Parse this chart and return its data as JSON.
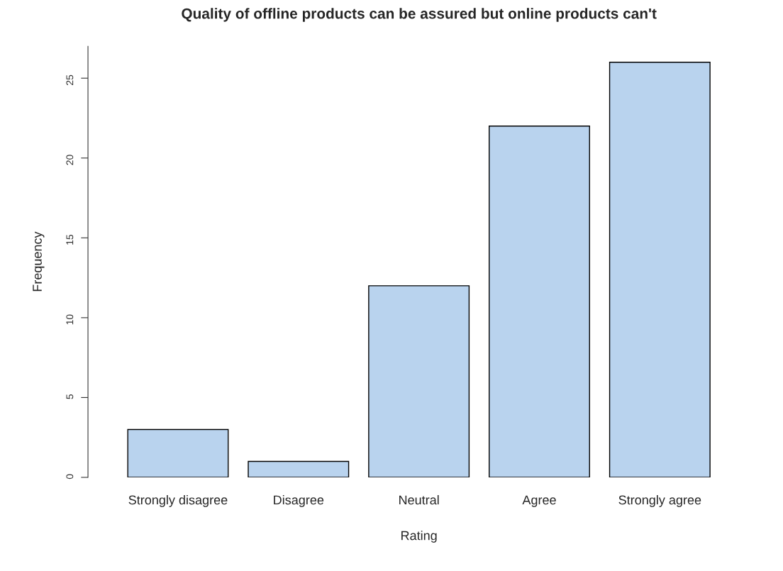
{
  "chart_data": {
    "type": "bar",
    "title": "Quality of offline products can be assured but online products can't",
    "xlabel": "Rating",
    "ylabel": "Frequency",
    "categories": [
      "Strongly disagree",
      "Disagree",
      "Neutral",
      "Agree",
      "Strongly agree"
    ],
    "values": [
      3,
      1,
      12,
      22,
      26
    ],
    "color": "#b9d3ee",
    "ylim": [
      0,
      27
    ],
    "yticks": [
      0,
      5,
      10,
      15,
      20,
      25
    ],
    "grid": false,
    "legend": false
  }
}
